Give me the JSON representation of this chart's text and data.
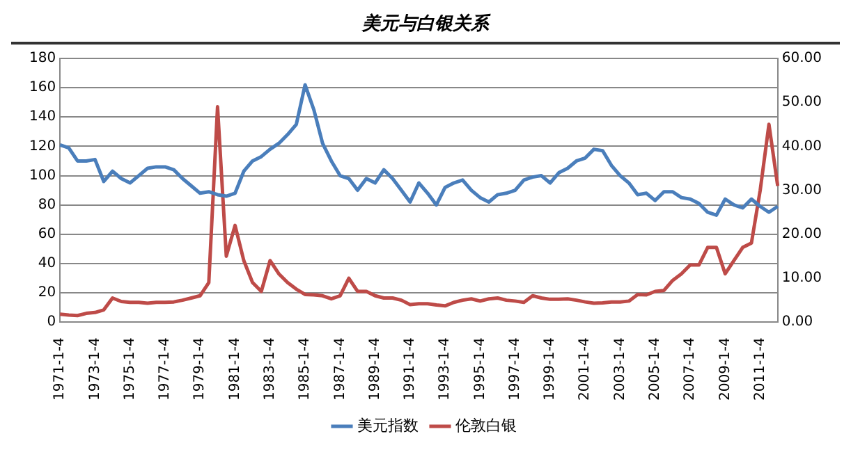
{
  "chart_data": {
    "type": "line",
    "title": "美元与白银关系",
    "categories": [
      "1971-1-4",
      null,
      null,
      null,
      "1973-1-4",
      null,
      null,
      null,
      "1975-1-4",
      null,
      null,
      null,
      "1977-1-4",
      null,
      null,
      null,
      "1979-1-4",
      null,
      null,
      null,
      "1981-1-4",
      null,
      null,
      null,
      "1983-1-4",
      null,
      null,
      null,
      "1985-1-4",
      null,
      null,
      null,
      "1987-1-4",
      null,
      null,
      null,
      "1989-1-4",
      null,
      null,
      null,
      "1991-1-4",
      null,
      null,
      null,
      "1993-1-4",
      null,
      null,
      null,
      "1995-1-4",
      null,
      null,
      null,
      "1997-1-4",
      null,
      null,
      null,
      "1999-1-4",
      null,
      null,
      null,
      "2001-1-4",
      null,
      null,
      null,
      "2003-1-4",
      null,
      null,
      null,
      "2005-1-4",
      null,
      null,
      null,
      "2007-1-4",
      null,
      null,
      null,
      "2009-1-4",
      null,
      null,
      null,
      "2011-1-4",
      null,
      null
    ],
    "series": [
      {
        "name": "美元指数",
        "color": "#4a7ebb",
        "values": [
          121,
          119,
          110,
          110,
          111,
          96,
          103,
          98,
          95,
          100,
          105,
          106,
          106,
          104,
          98,
          93,
          88,
          89,
          87,
          86,
          88,
          103,
          110,
          113,
          118,
          122,
          128,
          135,
          162,
          145,
          122,
          110,
          100,
          98,
          90,
          98,
          95,
          104,
          98,
          90,
          82,
          95,
          88,
          80,
          92,
          95,
          97,
          90,
          85,
          82,
          87,
          88,
          90,
          97,
          99,
          100,
          95,
          102,
          105,
          110,
          112,
          118,
          117,
          107,
          100,
          95,
          87,
          88,
          83,
          89,
          89,
          85,
          84,
          81,
          75,
          73,
          84,
          80,
          78,
          84,
          79,
          75,
          79
        ]
      },
      {
        "name": "伦敦白银",
        "color": "#be4b48",
        "axis": "y2",
        "values": [
          1.8,
          1.6,
          1.5,
          2.0,
          2.2,
          2.8,
          5.5,
          4.7,
          4.5,
          4.5,
          4.3,
          4.5,
          4.5,
          4.6,
          5.0,
          5.5,
          6.0,
          9,
          49,
          15,
          22,
          14,
          9,
          7,
          14,
          11,
          9,
          7.5,
          6.3,
          6.2,
          6.0,
          5.3,
          6.0,
          10,
          7,
          7,
          6,
          5.5,
          5.5,
          5,
          4,
          4.2,
          4.2,
          3.9,
          3.7,
          4.5,
          5.0,
          5.3,
          4.8,
          5.3,
          5.5,
          5.0,
          4.8,
          4.5,
          6.0,
          5.5,
          5.2,
          5.2,
          5.3,
          5.0,
          4.6,
          4.3,
          4.4,
          4.6,
          4.6,
          4.8,
          6.3,
          6.2,
          7.0,
          7.2,
          9.5,
          11,
          13,
          13,
          17,
          17,
          11,
          14,
          17,
          18,
          30,
          45,
          31
        ]
      }
    ],
    "ylim": [
      0,
      180
    ],
    "yticks": [
      0,
      20,
      40,
      60,
      80,
      100,
      120,
      140,
      160,
      180
    ],
    "y2lim": [
      0,
      60
    ],
    "y2ticks": [
      {
        "value": 0,
        "label": "0.00"
      },
      {
        "value": 10,
        "label": "10.00"
      },
      {
        "value": 20,
        "label": "20.00"
      },
      {
        "value": 30,
        "label": "30.00"
      },
      {
        "value": 40,
        "label": "40.00"
      },
      {
        "value": 50,
        "label": "50.00"
      },
      {
        "value": 60,
        "label": "60.00"
      }
    ],
    "grid": "y",
    "legend": "bottom",
    "marker": "none",
    "line_style": "solid"
  }
}
